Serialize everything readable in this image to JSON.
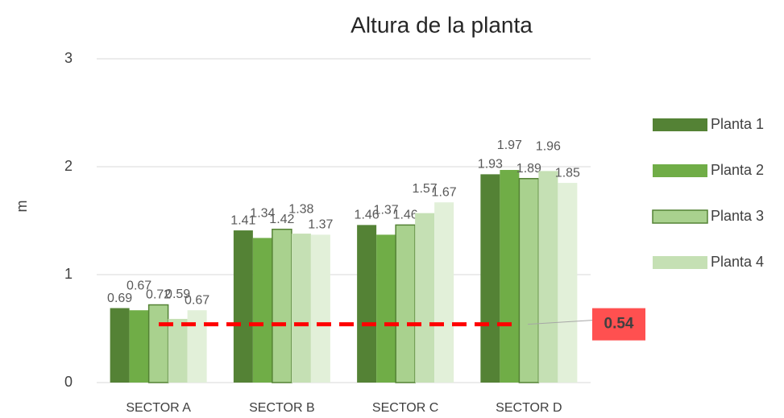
{
  "chart_data": {
    "type": "bar",
    "title": "Altura de la planta",
    "y_label": "m",
    "categories": [
      "SECTOR A",
      "SECTOR B",
      "SECTOR C",
      "SECTOR D"
    ],
    "series": [
      {
        "name": "Planta 1",
        "color": "#548235",
        "values": [
          0.69,
          1.41,
          1.46,
          1.93
        ]
      },
      {
        "name": "Planta 2",
        "color": "#70ad47",
        "values": [
          0.67,
          1.34,
          1.37,
          1.97
        ]
      },
      {
        "name": "Planta 3",
        "color": "#a9d18e",
        "border": "#548235",
        "values": [
          0.72,
          1.42,
          1.46,
          1.89
        ]
      },
      {
        "name": "Planta 4",
        "color": "#c5e0b4",
        "values": [
          0.59,
          1.38,
          1.57,
          1.96
        ]
      },
      {
        "color": "#e2f0d9",
        "values": [
          0.67,
          1.37,
          1.67,
          1.85
        ]
      }
    ],
    "ylim": [
      0,
      3
    ],
    "yticks": [
      0,
      1,
      2,
      3
    ],
    "grid": true,
    "legend": "right",
    "reference_line": {
      "value": 0.54,
      "color": "#ff0000"
    }
  }
}
